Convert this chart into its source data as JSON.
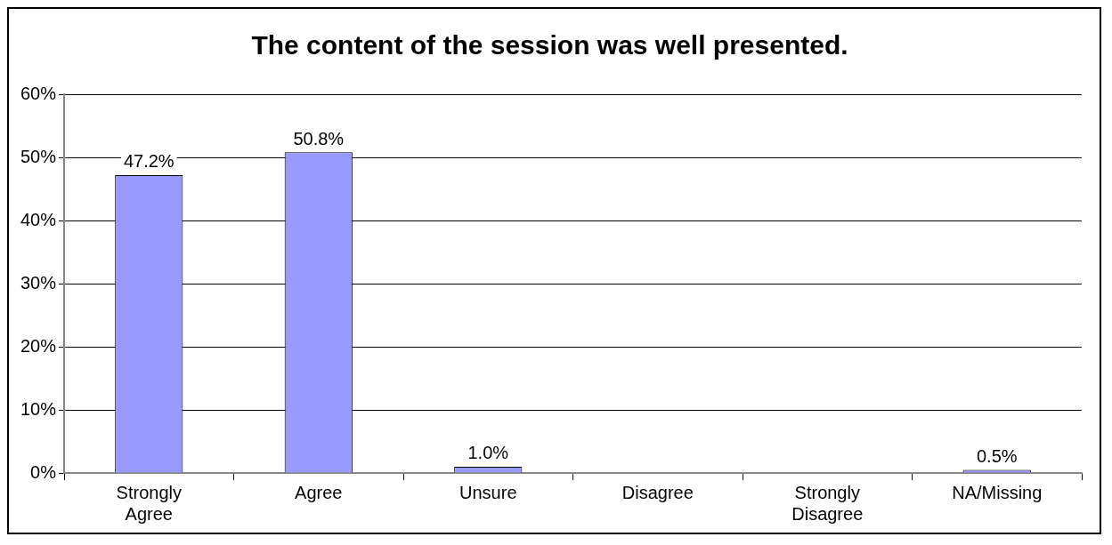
{
  "chart_data": {
    "type": "bar",
    "title": "The content of the session was well presented.",
    "categories": [
      "Strongly Agree",
      "Agree",
      "Unsure",
      "Disagree",
      "Strongly Disagree",
      "NA/Missing"
    ],
    "values": [
      47.2,
      50.8,
      1.0,
      0,
      0,
      0.5
    ],
    "value_labels": [
      "47.2%",
      "50.8%",
      "1.0%",
      null,
      null,
      "0.5%"
    ],
    "color": "#9999ff",
    "ylim": [
      0,
      60
    ],
    "yticks": [
      {
        "value": 0,
        "label": "0%"
      },
      {
        "value": 10,
        "label": "10%"
      },
      {
        "value": 20,
        "label": "20%"
      },
      {
        "value": 30,
        "label": "30%"
      },
      {
        "value": 40,
        "label": "40%"
      },
      {
        "value": 50,
        "label": "50%"
      },
      {
        "value": 60,
        "label": "60%"
      }
    ],
    "grid": "y",
    "legend": false
  }
}
